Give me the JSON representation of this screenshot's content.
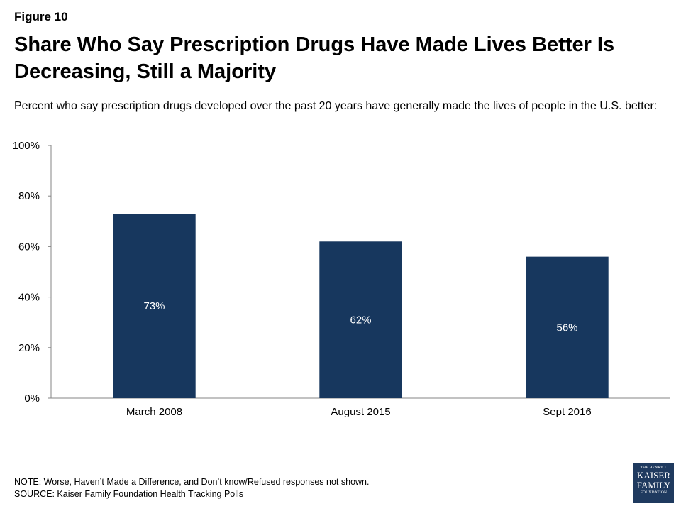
{
  "figure_label": "Figure 10",
  "chart_data": {
    "type": "bar",
    "title": "Share Who Say Prescription Drugs Have Made Lives Better Is Decreasing, Still a Majority",
    "subtitle": "Percent who say prescription drugs developed over the past 20 years have generally made the lives of people in the U.S. better:",
    "categories": [
      "March 2008",
      "August 2015",
      "Sept 2016"
    ],
    "values": [
      73,
      62,
      56
    ],
    "data_labels": [
      "73%",
      "62%",
      "56%"
    ],
    "ylim": [
      0,
      100
    ],
    "yticks": [
      0,
      20,
      40,
      60,
      80,
      100
    ],
    "ytick_labels": [
      "0%",
      "20%",
      "40%",
      "60%",
      "80%",
      "100%"
    ],
    "xlabel": "",
    "ylabel": "",
    "grid": false,
    "bar_color": "#17375e",
    "label_color": "#ffffff"
  },
  "notes": {
    "note": "NOTE: Worse, Haven’t Made a Difference, and Don’t know/Refused responses not shown.",
    "source": "SOURCE: Kaiser Family Foundation Health Tracking Polls"
  },
  "logo": {
    "line1": "THE HENRY J.",
    "line2": "KAISER",
    "line3": "FAMILY",
    "line4": "FOUNDATION"
  }
}
